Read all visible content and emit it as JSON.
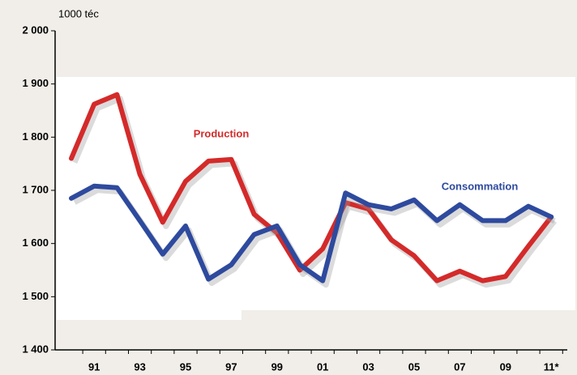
{
  "chart_data": {
    "type": "line",
    "y_label": "1000 téc",
    "categories": [
      null,
      "91",
      null,
      "93",
      null,
      "95",
      null,
      "97",
      null,
      "99",
      null,
      "01",
      null,
      "03",
      null,
      "05",
      null,
      "07",
      null,
      "09",
      null,
      "11*"
    ],
    "series": [
      {
        "name": "Production",
        "color": "#d42a2a",
        "values": [
          1760,
          1862,
          1880,
          1730,
          1640,
          1717,
          1755,
          1758,
          1655,
          1620,
          1550,
          1590,
          1677,
          1665,
          1607,
          1577,
          1530,
          1548,
          1530,
          1538,
          1595,
          1650
        ]
      },
      {
        "name": "Consommation",
        "color": "#2e4a9e",
        "values": [
          1685,
          1708,
          1705,
          1643,
          1580,
          1633,
          1533,
          1560,
          1617,
          1633,
          1560,
          1530,
          1695,
          1673,
          1665,
          1682,
          1643,
          1673,
          1643,
          1643,
          1670,
          1650
        ]
      }
    ],
    "ylim": [
      1400,
      2000
    ],
    "yticks": [
      {
        "value": 1400,
        "label": "1 400"
      },
      {
        "value": 1500,
        "label": "1 500"
      },
      {
        "value": 1600,
        "label": "1 600"
      },
      {
        "value": 1700,
        "label": "1 700"
      },
      {
        "value": 1800,
        "label": "1 800"
      },
      {
        "value": 1900,
        "label": "1 900"
      },
      {
        "value": 2000,
        "label": "2 000"
      }
    ]
  }
}
